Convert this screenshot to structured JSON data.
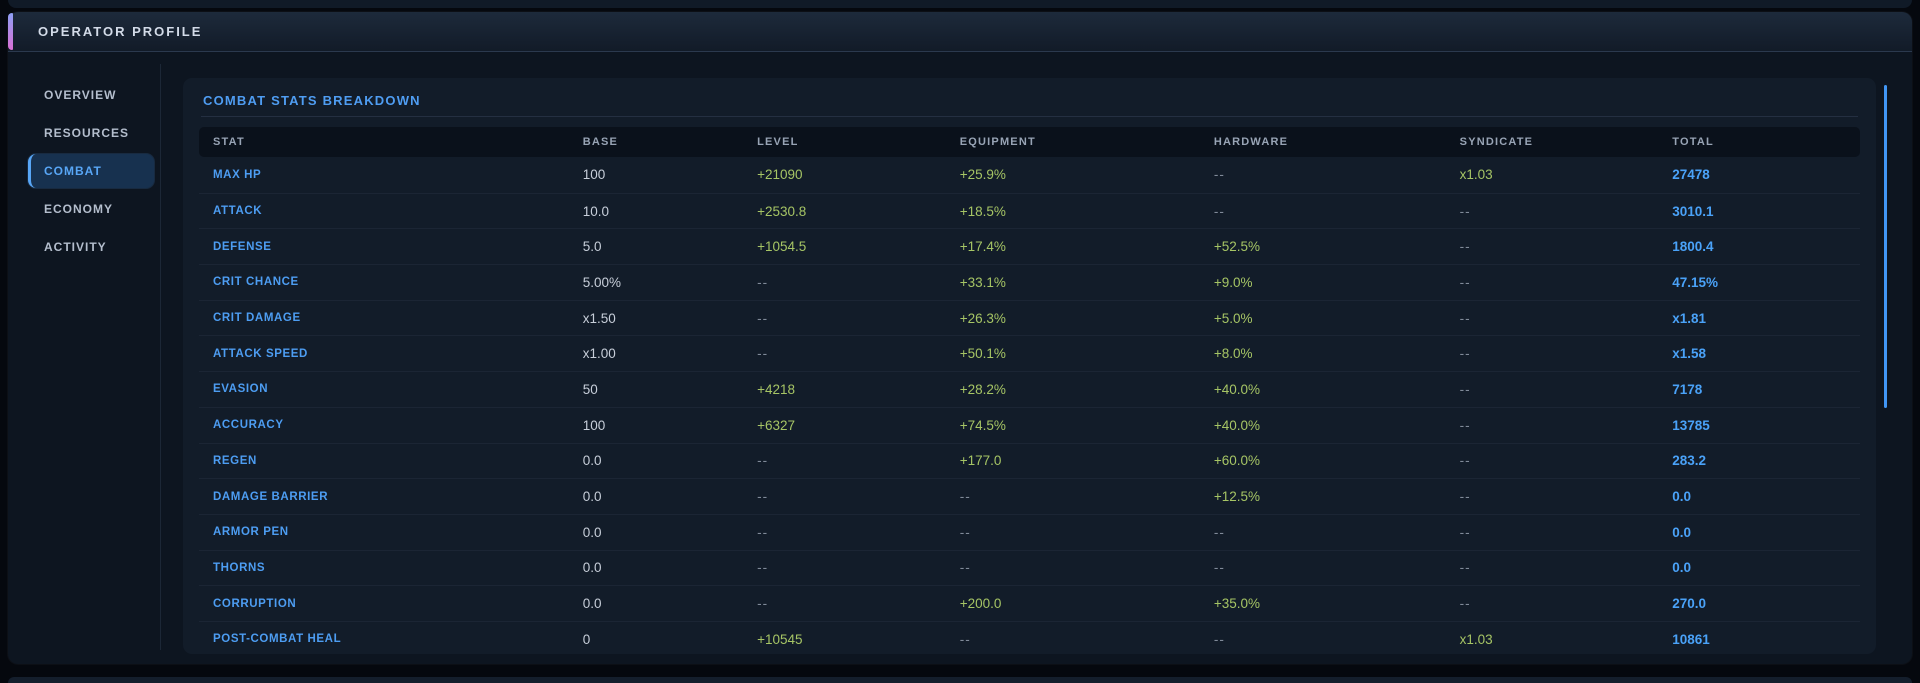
{
  "window": {
    "title": "OPERATOR PROFILE"
  },
  "sidebar": {
    "items": [
      {
        "label": "OVERVIEW",
        "active": false
      },
      {
        "label": "RESOURCES",
        "active": false
      },
      {
        "label": "COMBAT",
        "active": true
      },
      {
        "label": "ECONOMY",
        "active": false
      },
      {
        "label": "ACTIVITY",
        "active": false
      }
    ]
  },
  "panel": {
    "title": "COMBAT STATS BREAKDOWN"
  },
  "table": {
    "columns": [
      "STAT",
      "BASE",
      "LEVEL",
      "EQUIPMENT",
      "HARDWARE",
      "SYNDICATE",
      "TOTAL"
    ],
    "empty_marker": "--",
    "rows": [
      {
        "stat": "MAX HP",
        "base": "100",
        "level": "+21090",
        "equipment": "+25.9%",
        "hardware": "--",
        "syndicate": "x1.03",
        "total": "27478"
      },
      {
        "stat": "ATTACK",
        "base": "10.0",
        "level": "+2530.8",
        "equipment": "+18.5%",
        "hardware": "--",
        "syndicate": "--",
        "total": "3010.1"
      },
      {
        "stat": "DEFENSE",
        "base": "5.0",
        "level": "+1054.5",
        "equipment": "+17.4%",
        "hardware": "+52.5%",
        "syndicate": "--",
        "total": "1800.4"
      },
      {
        "stat": "CRIT CHANCE",
        "base": "5.00%",
        "level": "--",
        "equipment": "+33.1%",
        "hardware": "+9.0%",
        "syndicate": "--",
        "total": "47.15%"
      },
      {
        "stat": "CRIT DAMAGE",
        "base": "x1.50",
        "level": "--",
        "equipment": "+26.3%",
        "hardware": "+5.0%",
        "syndicate": "--",
        "total": "x1.81"
      },
      {
        "stat": "ATTACK SPEED",
        "base": "x1.00",
        "level": "--",
        "equipment": "+50.1%",
        "hardware": "+8.0%",
        "syndicate": "--",
        "total": "x1.58"
      },
      {
        "stat": "EVASION",
        "base": "50",
        "level": "+4218",
        "equipment": "+28.2%",
        "hardware": "+40.0%",
        "syndicate": "--",
        "total": "7178"
      },
      {
        "stat": "ACCURACY",
        "base": "100",
        "level": "+6327",
        "equipment": "+74.5%",
        "hardware": "+40.0%",
        "syndicate": "--",
        "total": "13785"
      },
      {
        "stat": "REGEN",
        "base": "0.0",
        "level": "--",
        "equipment": "+177.0",
        "hardware": "+60.0%",
        "syndicate": "--",
        "total": "283.2"
      },
      {
        "stat": "DAMAGE BARRIER",
        "base": "0.0",
        "level": "--",
        "equipment": "--",
        "hardware": "+12.5%",
        "syndicate": "--",
        "total": "0.0"
      },
      {
        "stat": "ARMOR PEN",
        "base": "0.0",
        "level": "--",
        "equipment": "--",
        "hardware": "--",
        "syndicate": "--",
        "total": "0.0"
      },
      {
        "stat": "THORNS",
        "base": "0.0",
        "level": "--",
        "equipment": "--",
        "hardware": "--",
        "syndicate": "--",
        "total": "0.0"
      },
      {
        "stat": "CORRUPTION",
        "base": "0.0",
        "level": "--",
        "equipment": "+200.0",
        "hardware": "+35.0%",
        "syndicate": "--",
        "total": "270.0"
      },
      {
        "stat": "POST-COMBAT HEAL",
        "base": "0",
        "level": "+10545",
        "equipment": "--",
        "hardware": "--",
        "syndicate": "x1.03",
        "total": "10861"
      }
    ]
  },
  "colors": {
    "total_blue": "#4aa2f8",
    "bonus_green": "#a6c565",
    "header_gradient_top": "#1d2a3b",
    "header_gradient_bottom": "#121b28",
    "accent_gradient_top": "#8ea0f5",
    "accent_gradient_bottom": "#d96fd4"
  }
}
